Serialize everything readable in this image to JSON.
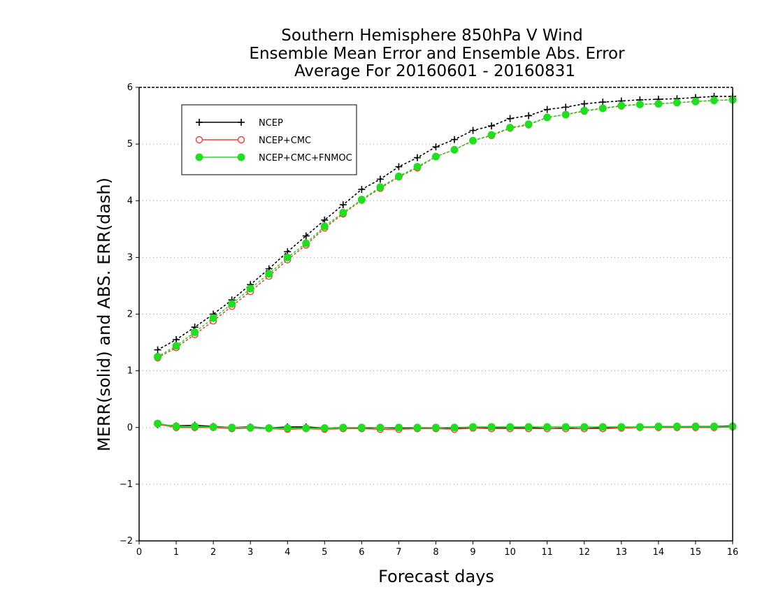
{
  "chart_data": {
    "type": "line",
    "title": [
      "Southern Hemisphere 850hPa V Wind",
      "Ensemble Mean Error and Ensemble Abs. Error",
      "Average For 20160601 - 20160831"
    ],
    "xlabel": "Forecast days",
    "ylabel": "MERR(solid) and ABS. ERR(dash)",
    "xlim": [
      0,
      16
    ],
    "ylim": [
      -2,
      6
    ],
    "xticks": [
      0,
      1,
      2,
      3,
      4,
      5,
      6,
      7,
      8,
      9,
      10,
      11,
      12,
      13,
      14,
      15,
      16
    ],
    "yticks": [
      -2,
      -1,
      0,
      1,
      2,
      3,
      4,
      5,
      6
    ],
    "grid": "horizontal-dotted",
    "legend_position": "top-left",
    "x": [
      0.5,
      1,
      1.5,
      2,
      2.5,
      3,
      3.5,
      4,
      4.5,
      5,
      5.5,
      6,
      6.5,
      7,
      7.5,
      8,
      8.5,
      9,
      9.5,
      10,
      10.5,
      11,
      11.5,
      12,
      12.5,
      13,
      13.5,
      14,
      14.5,
      15,
      15.5,
      16
    ],
    "series": [
      {
        "name": "NCEP",
        "color": "#000000",
        "marker": "plus",
        "abs_error": [
          1.37,
          1.55,
          1.77,
          2.0,
          2.25,
          2.52,
          2.8,
          3.1,
          3.38,
          3.66,
          3.93,
          4.2,
          4.38,
          4.6,
          4.76,
          4.95,
          5.08,
          5.24,
          5.32,
          5.45,
          5.5,
          5.61,
          5.65,
          5.71,
          5.74,
          5.76,
          5.78,
          5.79,
          5.8,
          5.82,
          5.84,
          5.84
        ],
        "mean_error": [
          0.05,
          0.03,
          0.04,
          0.02,
          0.0,
          0.01,
          -0.01,
          0.01,
          0.01,
          -0.01,
          0.0,
          -0.01,
          0.0,
          -0.01,
          -0.01,
          0.0,
          -0.01,
          0.0,
          0.0,
          0.0,
          0.0,
          -0.02,
          -0.01,
          -0.02,
          0.0,
          0.0,
          0.01,
          0.01,
          0.01,
          0.02,
          0.02,
          0.03
        ]
      },
      {
        "name": "NCEP+CMC",
        "color": "#ff3a3a",
        "marker": "open-circle",
        "abs_error": [
          1.23,
          1.41,
          1.64,
          1.88,
          2.14,
          2.4,
          2.67,
          2.96,
          3.22,
          3.52,
          3.77,
          4.01,
          4.22,
          4.42,
          4.58,
          4.78,
          4.9,
          5.06,
          5.15,
          5.28,
          5.34,
          5.47,
          5.52,
          5.58,
          5.63,
          5.67,
          5.7,
          5.71,
          5.73,
          5.75,
          5.77,
          5.78
        ],
        "mean_error": [
          0.06,
          0.0,
          0.0,
          0.0,
          -0.02,
          -0.01,
          -0.02,
          -0.03,
          -0.02,
          -0.03,
          -0.02,
          -0.02,
          -0.03,
          -0.03,
          -0.02,
          -0.02,
          -0.03,
          -0.01,
          -0.02,
          -0.02,
          -0.02,
          -0.02,
          -0.02,
          -0.02,
          -0.02,
          -0.01,
          0.0,
          0.0,
          0.0,
          0.0,
          0.0,
          0.01
        ]
      },
      {
        "name": "NCEP+CMC+FNMOC",
        "color": "#1ee01e",
        "marker": "filled-circle",
        "abs_error": [
          1.25,
          1.44,
          1.68,
          1.93,
          2.18,
          2.45,
          2.71,
          3.0,
          3.25,
          3.55,
          3.79,
          4.02,
          4.24,
          4.43,
          4.6,
          4.78,
          4.9,
          5.06,
          5.16,
          5.29,
          5.35,
          5.47,
          5.52,
          5.59,
          5.63,
          5.68,
          5.7,
          5.71,
          5.73,
          5.75,
          5.77,
          5.78
        ],
        "mean_error": [
          0.07,
          0.02,
          0.02,
          0.01,
          0.0,
          0.0,
          -0.01,
          -0.01,
          -0.01,
          -0.01,
          0.0,
          0.0,
          0.0,
          0.0,
          0.0,
          0.0,
          0.0,
          0.01,
          0.01,
          0.01,
          0.01,
          0.01,
          0.01,
          0.01,
          0.01,
          0.01,
          0.01,
          0.02,
          0.02,
          0.02,
          0.02,
          0.02
        ]
      }
    ]
  }
}
